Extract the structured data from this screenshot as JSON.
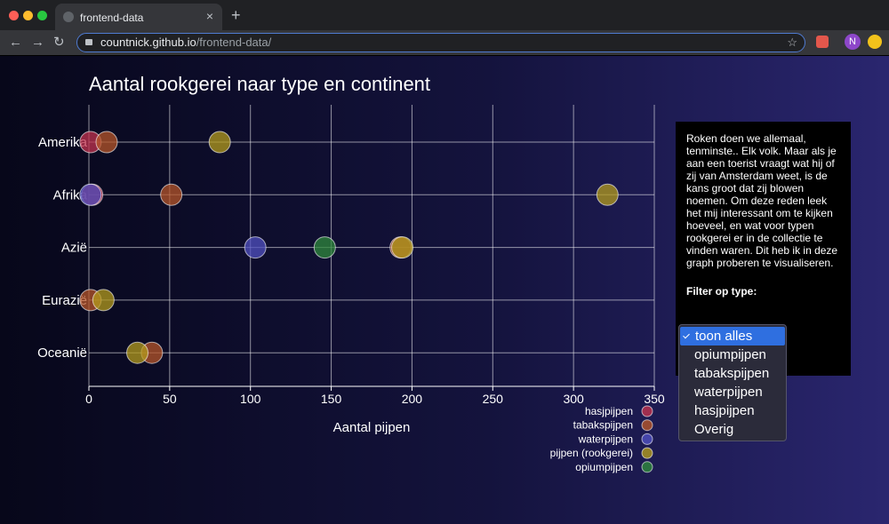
{
  "browser": {
    "tab_title": "frontend-data",
    "url_host": "countnick.github.io",
    "url_path": "/frontend-data/",
    "profile": "N"
  },
  "chart_data": {
    "type": "dot",
    "title": "Aantal rookgerei naar type en continent",
    "x_label": "Aantal pijpen",
    "categories": [
      "Amerika",
      "Afrika",
      "Azië",
      "Eurazië",
      "Oceanië"
    ],
    "series": [
      {
        "name": "hasjpijpen",
        "color": "#c2334f",
        "values": [
          1,
          2,
          null,
          null,
          null
        ]
      },
      {
        "name": "tabakspijpen",
        "color": "#b5562a",
        "values": [
          11,
          51,
          193,
          1,
          39
        ]
      },
      {
        "name": "waterpijpen",
        "color": "#5050c0",
        "values": [
          null,
          1,
          103,
          null,
          null
        ]
      },
      {
        "name": "pijpen (rookgerei)",
        "color": "#b39b1e",
        "values": [
          81,
          321,
          194,
          9,
          30
        ]
      },
      {
        "name": "opiumpijpen",
        "color": "#2f8a3c",
        "values": [
          null,
          null,
          146,
          null,
          null
        ]
      }
    ],
    "xlim": [
      0,
      350
    ],
    "xticks": [
      0,
      50,
      100,
      150,
      200,
      250,
      300,
      350
    ],
    "grid": true,
    "legend": "bottom-right"
  },
  "sidebar": {
    "text": "Roken doen we allemaal, tenminste.. Elk volk. Maar als je aan een toerist vraagt wat hij of zij van Amsterdam weet, is de kans groot dat zij blowen noemen. Om deze reden leek het mij interessant om te kijken hoeveel, en wat voor typen rookgerei er in de collectie te vinden waren. Dit heb ik in deze graph proberen te visualiseren.",
    "filter_label": "Filter op type:",
    "options": [
      "toon alles",
      "opiumpijpen",
      "tabakspijpen",
      "waterpijpen",
      "hasjpijpen",
      "Overig"
    ],
    "selected": 0
  }
}
